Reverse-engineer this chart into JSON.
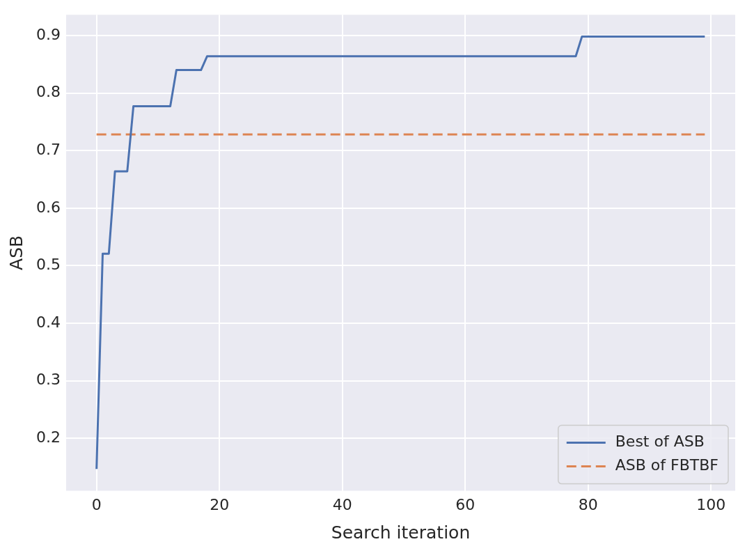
{
  "chart_data": {
    "type": "line",
    "xlabel": "Search iteration",
    "ylabel": "ASB",
    "xlim": [
      -4.95,
      103.95
    ],
    "xticks": [
      0,
      20,
      40,
      60,
      80,
      100
    ],
    "ylim": [
      0.109,
      0.936
    ],
    "yticks": [
      0.2,
      0.3,
      0.4,
      0.5,
      0.6,
      0.7,
      0.8,
      0.9
    ],
    "grid": true,
    "legend": "bottom right",
    "marker": "none",
    "series": [
      {
        "name": "Best of ASB",
        "color": "#4c72b0",
        "line_style": "solid",
        "x": [
          0,
          1,
          2,
          3,
          5,
          6,
          12,
          13,
          17,
          18,
          78,
          79,
          99
        ],
        "values": [
          0.147,
          0.521,
          0.521,
          0.664,
          0.664,
          0.777,
          0.777,
          0.84,
          0.84,
          0.864,
          0.864,
          0.898,
          0.898
        ]
      },
      {
        "name": "ASB of FBTBF",
        "color": "#dd8452",
        "line_style": "dashed",
        "x": [
          0,
          99
        ],
        "values": [
          0.728,
          0.728
        ]
      }
    ]
  }
}
